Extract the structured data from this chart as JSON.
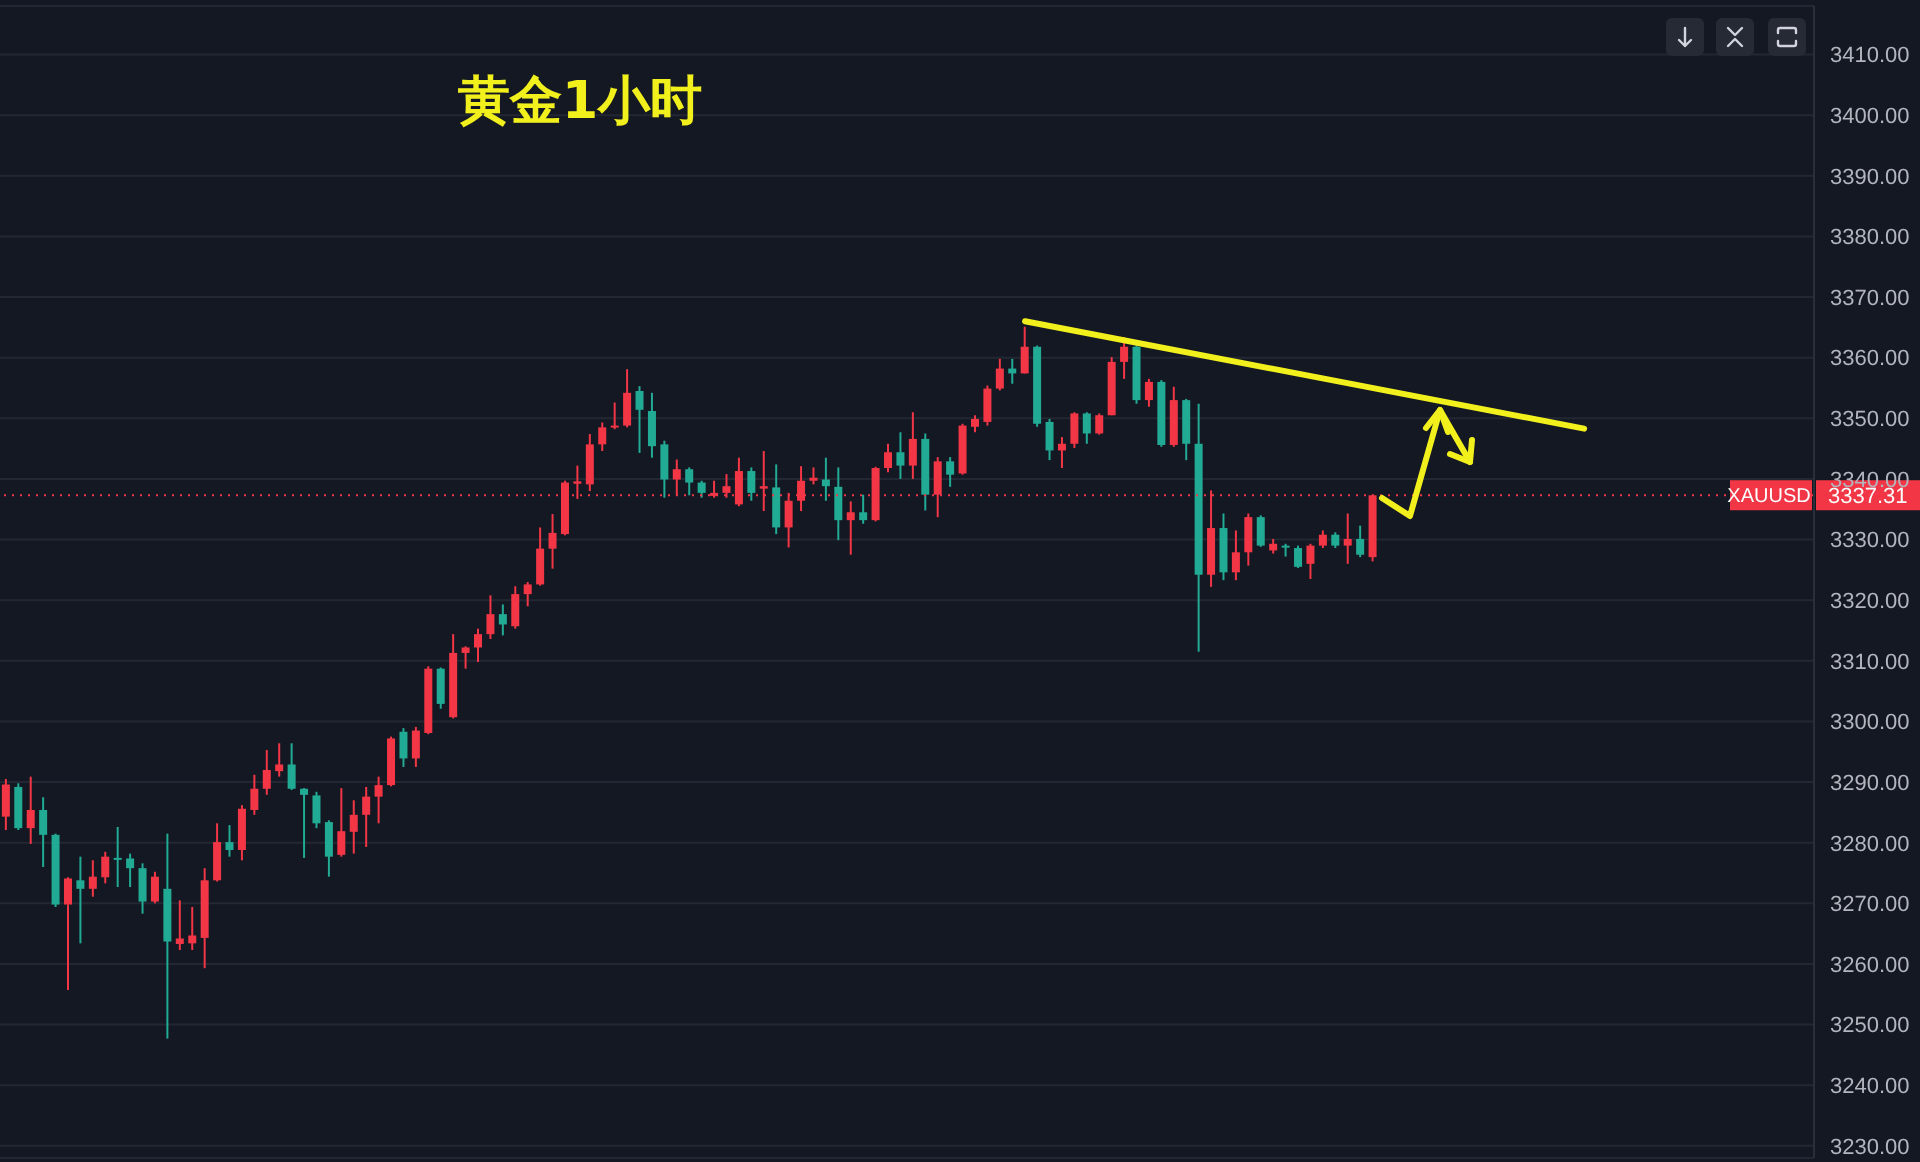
{
  "chart_data": {
    "type": "candlestick",
    "title": "黄金1小时",
    "categories": [
      null,
      null,
      null,
      null,
      null,
      null,
      null,
      null,
      null,
      null,
      null,
      null,
      null,
      null,
      null,
      null,
      null,
      null,
      null,
      null,
      null,
      null,
      null,
      null,
      null,
      null,
      null,
      null,
      null,
      null,
      null,
      null,
      null,
      null,
      null,
      null,
      null,
      null,
      null,
      null,
      null,
      null,
      null,
      null,
      null,
      null,
      null,
      null,
      null,
      null,
      null,
      null,
      null,
      null,
      null,
      null,
      null,
      null,
      null,
      null,
      null,
      null,
      null,
      null,
      null,
      null,
      null,
      null,
      null,
      null,
      null,
      null,
      null,
      null,
      null,
      null,
      null,
      null,
      null,
      null,
      null,
      null,
      null,
      null,
      null,
      null,
      null,
      null,
      null,
      null,
      null,
      null,
      null,
      null,
      null,
      null,
      null,
      null,
      null,
      null,
      null,
      null,
      null,
      null,
      null,
      null,
      null,
      null,
      null,
      null,
      null,
      null,
      null,
      null,
      null,
      null,
      null,
      null,
      null,
      null,
      null,
      null,
      null,
      null,
      null,
      null,
      null,
      null,
      null,
      null,
      null,
      null,
      null,
      null,
      null,
      null,
      null,
      null,
      null,
      null,
      null,
      null,
      null,
      null,
      null,
      null
    ],
    "ohlc": [
      [
        3284.3,
        3290.5,
        3282.1,
        3289.6
      ],
      [
        3289.2,
        3289.8,
        3282.1,
        3282.4
      ],
      [
        3282.4,
        3290.9,
        3279.8,
        3285.4
      ],
      [
        3285.4,
        3287.5,
        3276.0,
        3281.3
      ],
      [
        3281.3,
        3281.5,
        3269.4,
        3269.8
      ],
      [
        3269.8,
        3274.3,
        3255.7,
        3274.1
      ],
      [
        3273.8,
        3277.7,
        3263.4,
        3272.4
      ],
      [
        3272.4,
        3277.1,
        3271.1,
        3274.4
      ],
      [
        3274.3,
        3278.5,
        3273.3,
        3277.7
      ],
      [
        3277.5,
        3282.6,
        3272.7,
        3277.3
      ],
      [
        3277.4,
        3278.2,
        3272.7,
        3275.8
      ],
      [
        3275.8,
        3276.6,
        3268.3,
        3270.3
      ],
      [
        3270.3,
        3275.2,
        3270.0,
        3274.4
      ],
      [
        3272.4,
        3281.5,
        3247.7,
        3263.7
      ],
      [
        3263.3,
        3270.5,
        3262.3,
        3264.2
      ],
      [
        3263.4,
        3269.4,
        3262.3,
        3264.7
      ],
      [
        3264.3,
        3275.8,
        3259.3,
        3273.8
      ],
      [
        3273.8,
        3283.2,
        3273.6,
        3280.1
      ],
      [
        3280.1,
        3282.9,
        3277.7,
        3278.8
      ],
      [
        3278.8,
        3286.2,
        3277.1,
        3285.6
      ],
      [
        3285.4,
        3291.2,
        3284.6,
        3288.9
      ],
      [
        3288.9,
        3295.3,
        3287.9,
        3292.0
      ],
      [
        3291.8,
        3296.4,
        3290.9,
        3292.9
      ],
      [
        3292.9,
        3296.4,
        3288.7,
        3288.9
      ],
      [
        3288.9,
        3289.0,
        3277.5,
        3287.9
      ],
      [
        3287.8,
        3288.4,
        3282.4,
        3283.2
      ],
      [
        3283.4,
        3283.7,
        3274.4,
        3277.7
      ],
      [
        3278.0,
        3289.0,
        3277.7,
        3281.9
      ],
      [
        3281.8,
        3287.0,
        3278.2,
        3284.6
      ],
      [
        3284.6,
        3289.2,
        3279.3,
        3287.6
      ],
      [
        3287.6,
        3290.9,
        3283.2,
        3289.5
      ],
      [
        3289.5,
        3297.5,
        3289.3,
        3297.2
      ],
      [
        3298.3,
        3298.9,
        3292.5,
        3293.9
      ],
      [
        3293.9,
        3299.1,
        3292.5,
        3298.5
      ],
      [
        3298.1,
        3309.1,
        3297.9,
        3308.7
      ],
      [
        3308.7,
        3308.9,
        3302.1,
        3302.9
      ],
      [
        3300.7,
        3314.4,
        3300.5,
        3311.3
      ],
      [
        3311.3,
        3312.4,
        3308.7,
        3312.2
      ],
      [
        3312.2,
        3315.3,
        3309.8,
        3314.4
      ],
      [
        3314.4,
        3320.8,
        3313.6,
        3317.7
      ],
      [
        3317.7,
        3319.3,
        3314.2,
        3316.0
      ],
      [
        3315.7,
        3322.3,
        3315.3,
        3321.0
      ],
      [
        3321.0,
        3323.0,
        3319.0,
        3322.6
      ],
      [
        3322.6,
        3332.0,
        3322.4,
        3328.5
      ],
      [
        3328.5,
        3334.2,
        3325.2,
        3331.1
      ],
      [
        3330.9,
        3339.7,
        3330.7,
        3339.4
      ],
      [
        3339.2,
        3342.2,
        3336.7,
        3339.6
      ],
      [
        3339.1,
        3347.4,
        3338.0,
        3345.7
      ],
      [
        3345.7,
        3349.3,
        3344.6,
        3348.5
      ],
      [
        3348.5,
        3352.6,
        3348.2,
        3348.8
      ],
      [
        3348.8,
        3358.1,
        3348.5,
        3354.2
      ],
      [
        3354.5,
        3355.3,
        3344.3,
        3351.4
      ],
      [
        3351.2,
        3354.2,
        3343.5,
        3345.4
      ],
      [
        3345.7,
        3346.3,
        3336.9,
        3339.9
      ],
      [
        3339.9,
        3343.2,
        3337.3,
        3341.6
      ],
      [
        3341.6,
        3341.9,
        3337.3,
        3339.4
      ],
      [
        3339.4,
        3339.7,
        3336.9,
        3337.7
      ],
      [
        3337.2,
        3339.7,
        3336.9,
        3337.7
      ],
      [
        3337.7,
        3340.8,
        3336.9,
        3338.8
      ],
      [
        3335.8,
        3343.5,
        3335.5,
        3341.3
      ],
      [
        3341.3,
        3341.9,
        3336.4,
        3337.7
      ],
      [
        3338.4,
        3344.6,
        3334.7,
        3338.8
      ],
      [
        3338.6,
        3342.4,
        3330.9,
        3332.0
      ],
      [
        3332.0,
        3337.7,
        3328.7,
        3336.4
      ],
      [
        3336.4,
        3342.1,
        3334.7,
        3339.7
      ],
      [
        3339.7,
        3341.9,
        3339.1,
        3340.2
      ],
      [
        3339.9,
        3343.5,
        3336.4,
        3338.8
      ],
      [
        3338.7,
        3341.9,
        3329.9,
        3333.2
      ],
      [
        3333.2,
        3336.3,
        3327.5,
        3334.5
      ],
      [
        3334.5,
        3337.4,
        3332.6,
        3333.2
      ],
      [
        3333.2,
        3342.0,
        3333.0,
        3341.8
      ],
      [
        3341.8,
        3345.8,
        3341.1,
        3344.4
      ],
      [
        3344.4,
        3347.7,
        3340.0,
        3342.2
      ],
      [
        3342.2,
        3351.0,
        3340.0,
        3346.6
      ],
      [
        3346.6,
        3347.5,
        3334.8,
        3337.4
      ],
      [
        3337.4,
        3343.6,
        3333.7,
        3342.9
      ],
      [
        3342.9,
        3343.6,
        3338.7,
        3340.7
      ],
      [
        3340.9,
        3349.1,
        3340.7,
        3348.8
      ],
      [
        3348.6,
        3350.5,
        3347.7,
        3349.9
      ],
      [
        3349.4,
        3355.4,
        3348.8,
        3354.9
      ],
      [
        3354.9,
        3359.8,
        3354.6,
        3358.2
      ],
      [
        3358.2,
        3359.8,
        3355.7,
        3357.4
      ],
      [
        3357.4,
        3365.1,
        3357.4,
        3361.8
      ],
      [
        3361.8,
        3362.0,
        3348.6,
        3349.1
      ],
      [
        3349.4,
        3349.9,
        3343.1,
        3344.7
      ],
      [
        3344.7,
        3346.9,
        3341.8,
        3345.8
      ],
      [
        3345.8,
        3351.0,
        3345.1,
        3350.8
      ],
      [
        3350.8,
        3351.0,
        3345.8,
        3347.5
      ],
      [
        3347.5,
        3350.8,
        3347.3,
        3350.5
      ],
      [
        3350.5,
        3360.1,
        3350.5,
        3359.3
      ],
      [
        3359.3,
        3363.4,
        3356.5,
        3361.8
      ],
      [
        3361.8,
        3362.3,
        3352.4,
        3353.0
      ],
      [
        3353.0,
        3356.5,
        3351.9,
        3356.0
      ],
      [
        3356.0,
        3356.3,
        3345.3,
        3345.6
      ],
      [
        3345.6,
        3355.2,
        3345.3,
        3353.0
      ],
      [
        3353.0,
        3353.2,
        3343.1,
        3345.8
      ],
      [
        3345.8,
        3352.4,
        3311.5,
        3324.2
      ],
      [
        3324.2,
        3338.1,
        3322.2,
        3331.9
      ],
      [
        3331.9,
        3334.3,
        3323.3,
        3324.6
      ],
      [
        3324.6,
        3331.5,
        3323.3,
        3327.9
      ],
      [
        3327.9,
        3334.3,
        3325.7,
        3333.7
      ],
      [
        3333.7,
        3334.0,
        3328.8,
        3329.0
      ],
      [
        3328.2,
        3330.1,
        3327.7,
        3329.3
      ],
      [
        3329.0,
        3329.3,
        3327.2,
        3328.8
      ],
      [
        3328.6,
        3329.0,
        3325.3,
        3325.5
      ],
      [
        3326.0,
        3329.3,
        3323.5,
        3329.0
      ],
      [
        3329.0,
        3331.5,
        3328.6,
        3330.8
      ],
      [
        3330.8,
        3331.2,
        3328.6,
        3329.0
      ],
      [
        3329.0,
        3334.3,
        3326.0,
        3330.1
      ],
      [
        3330.1,
        3332.3,
        3327.1,
        3327.5
      ],
      [
        3327.1,
        3337.4,
        3326.4,
        3337.3
      ],
      null,
      null,
      null,
      null,
      null,
      null,
      null,
      null,
      null,
      null,
      null,
      null,
      null,
      null,
      null,
      null,
      null,
      null,
      null,
      null,
      null,
      null,
      null,
      null,
      null,
      null,
      null,
      null,
      null,
      null,
      null,
      null,
      null,
      null,
      null
    ],
    "colors": [
      "#f23645",
      "#22ab94",
      "#f23645",
      "#22ab94",
      "#22ab94",
      "#f23645",
      "#22ab94",
      "#f23645",
      "#f23645",
      "#22ab94",
      "#22ab94",
      "#22ab94",
      "#f23645",
      "#22ab94",
      "#f23645",
      "#f23645",
      "#f23645",
      "#f23645",
      "#22ab94",
      "#f23645",
      "#f23645",
      "#f23645",
      "#f23645",
      "#22ab94",
      "#22ab94",
      "#22ab94",
      "#22ab94",
      "#f23645",
      "#f23645",
      "#f23645",
      "#f23645",
      "#f23645",
      "#22ab94",
      "#f23645",
      "#f23645",
      "#22ab94",
      "#f23645",
      "#f23645",
      "#f23645",
      "#f23645",
      "#22ab94",
      "#f23645",
      "#f23645",
      "#f23645",
      "#f23645",
      "#f23645",
      "#f23645",
      "#f23645",
      "#f23645",
      "#f23645",
      "#f23645",
      "#22ab94",
      "#22ab94",
      "#22ab94",
      "#f23645",
      "#22ab94",
      "#22ab94",
      "#f23645",
      "#f23645",
      "#f23645",
      "#22ab94",
      "#f23645",
      "#22ab94",
      "#f23645",
      "#f23645",
      "#f23645",
      "#22ab94",
      "#22ab94",
      "#f23645",
      "#22ab94",
      "#f23645",
      "#f23645",
      "#22ab94",
      "#f23645",
      "#22ab94",
      "#f23645",
      "#22ab94",
      "#f23645",
      "#f23645",
      "#f23645",
      "#f23645",
      "#22ab94",
      "#f23645",
      "#22ab94",
      "#22ab94",
      "#f23645",
      "#f23645",
      "#22ab94",
      "#f23645",
      "#f23645",
      "#f23645",
      "#22ab94",
      "#f23645",
      "#22ab94",
      "#f23645",
      "#22ab94",
      "#22ab94",
      "#f23645",
      "#22ab94",
      "#f23645",
      "#f23645",
      "#22ab94",
      "#f23645",
      "#22ab94",
      "#22ab94",
      "#f23645",
      "#f23645",
      "#22ab94",
      "#f23645",
      "#22ab94",
      "#f23645",
      null,
      null,
      null,
      null,
      null,
      null,
      null,
      null,
      null,
      null,
      null,
      null,
      null,
      null,
      null,
      null,
      null,
      null,
      null,
      null,
      null,
      null,
      null,
      null,
      null,
      null,
      null,
      null,
      null,
      null,
      null,
      null,
      null,
      null,
      null
    ],
    "series": [
      {
        "type": "line",
        "color": "#f2f01c",
        "values": [
          null,
          null,
          null,
          null,
          null,
          null,
          null,
          null,
          null,
          null,
          null,
          null,
          null,
          null,
          null,
          null,
          null,
          null,
          null,
          null,
          null,
          null,
          null,
          null,
          null,
          null,
          null,
          null,
          null,
          null,
          null,
          null,
          null,
          null,
          null,
          null,
          null,
          null,
          null,
          null,
          null,
          null,
          null,
          null,
          null,
          null,
          null,
          null,
          null,
          null,
          null,
          null,
          null,
          null,
          null,
          null,
          null,
          null,
          null,
          null,
          null,
          null,
          null,
          null,
          null,
          null,
          null,
          null,
          null,
          null,
          null,
          null,
          null,
          null,
          null,
          null,
          null,
          null,
          null,
          null,
          null,
          null,
          3366,
          null,
          null,
          null,
          null,
          null,
          null,
          null,
          null,
          null,
          null,
          null,
          null,
          null,
          null,
          null,
          null,
          null,
          null,
          null,
          null,
          null,
          null,
          null,
          null,
          null,
          null,
          null,
          null,
          null,
          null,
          null,
          null,
          null,
          null,
          null,
          null,
          null,
          null,
          null,
          null,
          null,
          null,
          null,
          null,
          3348.3,
          null,
          null,
          null,
          null,
          null,
          null,
          null,
          null,
          null,
          null,
          null,
          null,
          null,
          null,
          null,
          null,
          null,
          null
        ]
      }
    ],
    "ylim": [
      3228,
      3418
    ],
    "yticks": [
      {
        "value": 3230,
        "label": "3230.00"
      },
      {
        "value": 3240,
        "label": "3240.00"
      },
      {
        "value": 3250,
        "label": "3250.00"
      },
      {
        "value": 3260,
        "label": "3260.00"
      },
      {
        "value": 3270,
        "label": "3270.00"
      },
      {
        "value": 3280,
        "label": "3280.00"
      },
      {
        "value": 3290,
        "label": "3290.00"
      },
      {
        "value": 3300,
        "label": "3300.00"
      },
      {
        "value": 3310,
        "label": "3310.00"
      },
      {
        "value": 3320,
        "label": "3320.00"
      },
      {
        "value": 3330,
        "label": "3330.00"
      },
      {
        "value": 3340,
        "label": "3340.00"
      },
      {
        "value": 3350,
        "label": "3350.00"
      },
      {
        "value": 3360,
        "label": "3360.00"
      },
      {
        "value": 3370,
        "label": "3370.00"
      },
      {
        "value": 3380,
        "label": "3380.00"
      },
      {
        "value": 3390,
        "label": "3390.00"
      },
      {
        "value": 3400,
        "label": "3400.00"
      },
      {
        "value": 3410,
        "label": "3410.00"
      }
    ],
    "grid": "y",
    "tick_labels": "y",
    "ref_lines": [
      {
        "axis": "y",
        "value": 3337.31,
        "label": "XAUUSD",
        "color": "#f23645",
        "line_style": "dotted"
      }
    ],
    "annotations": [
      "3337.31"
    ]
  }
}
